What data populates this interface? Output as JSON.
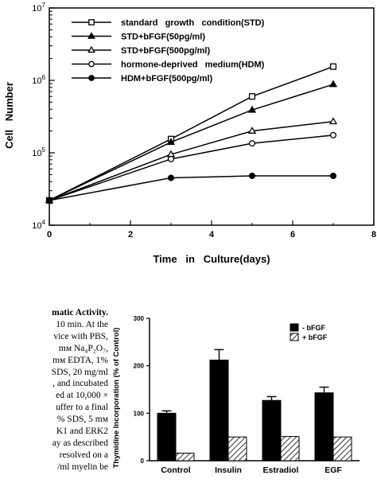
{
  "chart_data": [
    {
      "type": "line",
      "title": "",
      "xlabel": "Time   in   Culture(days)",
      "ylabel": "Cell   Number",
      "xlim": [
        0,
        8
      ],
      "ylim": [
        10000,
        10000000
      ],
      "yscale": "log",
      "x_ticks": [
        "0",
        "2",
        "4",
        "6",
        "8"
      ],
      "y_ticks": [
        {
          "base": "10",
          "exp": "4"
        },
        {
          "base": "10",
          "exp": "5"
        },
        {
          "base": "10",
          "exp": "6"
        },
        {
          "base": "10",
          "exp": "7"
        }
      ],
      "legend_position": "top-left",
      "series": [
        {
          "name": "standard   growth   condition(STD)",
          "marker": "open-square",
          "x": [
            0,
            3,
            5,
            7
          ],
          "y": [
            22000,
            155000,
            600000,
            1550000
          ]
        },
        {
          "name": "STD+bFGF(50pg/ml)",
          "marker": "filled-triangle",
          "x": [
            0,
            3,
            5,
            7
          ],
          "y": [
            22000,
            140000,
            390000,
            880000
          ]
        },
        {
          "name": "STD+bFGF(500pg/ml)",
          "marker": "open-triangle",
          "x": [
            0,
            3,
            5,
            7
          ],
          "y": [
            22000,
            95000,
            200000,
            270000
          ]
        },
        {
          "name": "hormone-deprived   medium(HDM)",
          "marker": "open-circle",
          "x": [
            0,
            3,
            5,
            7
          ],
          "y": [
            22000,
            82000,
            135000,
            175000
          ]
        },
        {
          "name": "HDM+bFGF(500pg/ml)",
          "marker": "filled-circle",
          "x": [
            0,
            3,
            5,
            7
          ],
          "y": [
            22000,
            45000,
            48000,
            48000
          ]
        }
      ]
    },
    {
      "type": "bar",
      "title": "",
      "xlabel": "",
      "ylabel": "Thymidine Incorporation (% of Control)",
      "ylim": [
        0,
        300
      ],
      "y_ticks": [
        "0",
        "100",
        "200",
        "300"
      ],
      "categories": [
        "Control",
        "Insulin",
        "Estradiol",
        "EGF"
      ],
      "legend_position": "top-right",
      "series": [
        {
          "name": "- bFGF",
          "fill": "solid-black",
          "values": [
            100,
            212,
            127,
            143
          ],
          "errors": [
            5,
            22,
            8,
            12
          ]
        },
        {
          "name": "+ bFGF",
          "fill": "hatched",
          "values": [
            16,
            50,
            51,
            50
          ],
          "errors": [
            0,
            0,
            0,
            0
          ]
        }
      ]
    }
  ],
  "text_fragment": {
    "lines": [
      "matic Activity.",
      "10 min. At the",
      "vice with PBS,",
      "mм Na₄P₂O₇,",
      "mм EDTA, 1%",
      "SDS, 20 mg/ml",
      ", and incubated",
      "ed at 10,000 ×",
      "uffer to a final",
      "% SDS, 5 mм",
      "K1 and ERK2",
      "ay as described",
      " resolved on a",
      "/ml myelin be"
    ]
  },
  "colors": {
    "ink": "#000000",
    "background": "#ffffff"
  }
}
